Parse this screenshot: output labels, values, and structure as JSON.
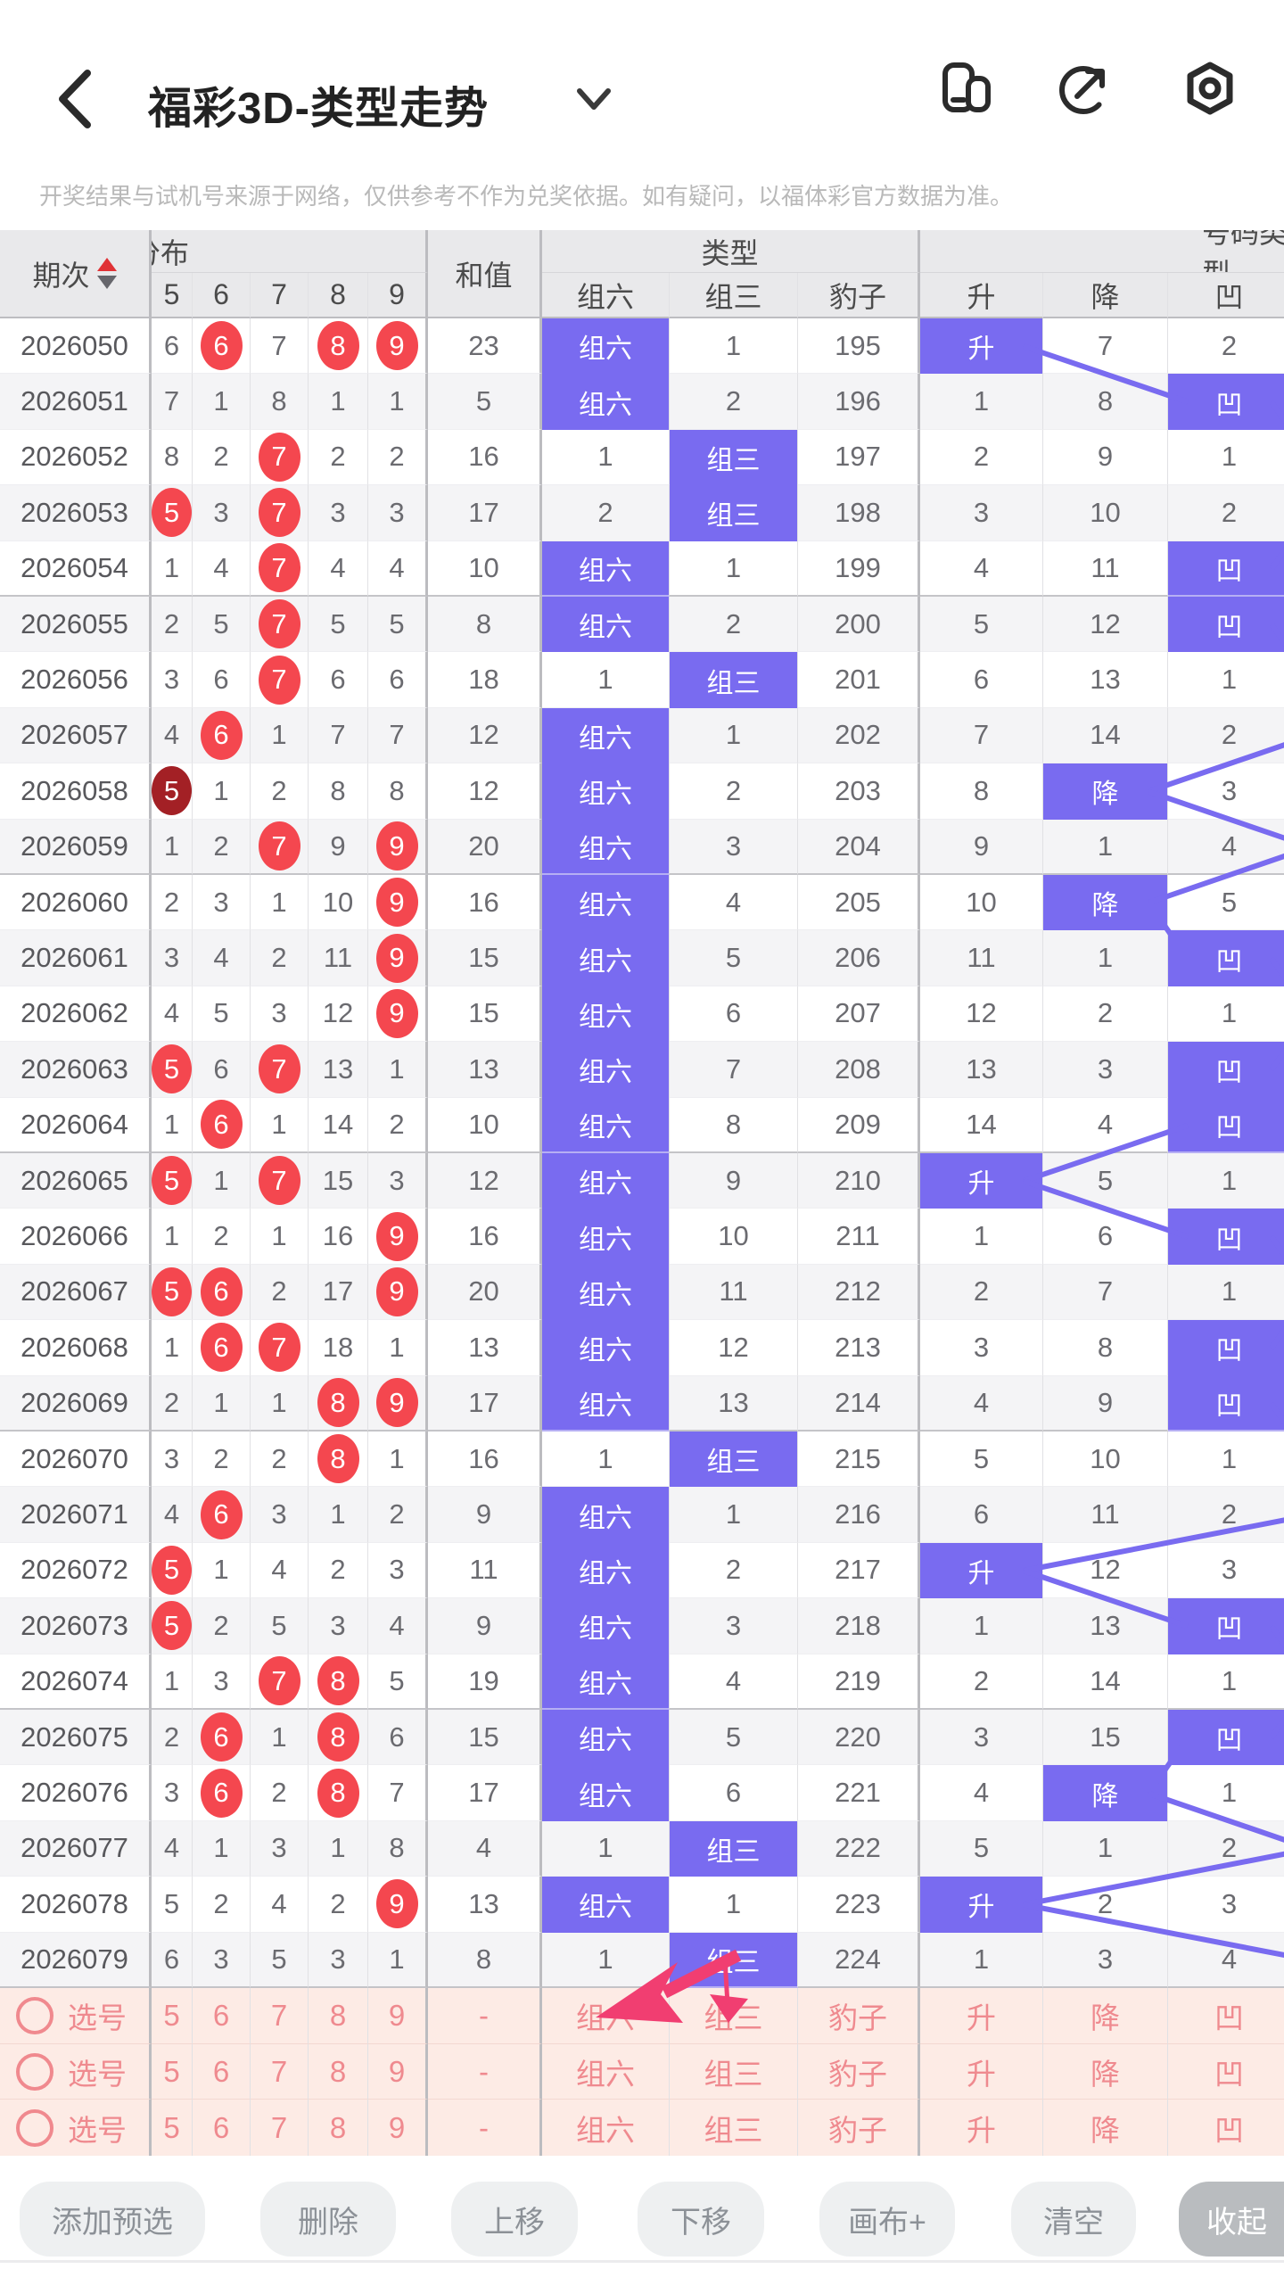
{
  "app_bar": {
    "title": "福彩3D-类型走势"
  },
  "disclaimer": "开奖结果与试机号来源于网络，仅供参考不作为兑奖依据。如有疑问，以福体彩官方数据为准。",
  "table": {
    "group_headers": {
      "period": "期次",
      "distribution": "分布",
      "sum": "和值",
      "type": "类型",
      "number_type": "号码类型"
    },
    "digit_columns": [
      "5",
      "6",
      "7",
      "8",
      "9"
    ],
    "type_columns": [
      "组六",
      "组三",
      "豹子"
    ],
    "number_type_columns": [
      "升",
      "降",
      "凹"
    ],
    "rows": [
      {
        "p": "2026050",
        "d": [
          "6",
          "6",
          "7",
          "8",
          "9"
        ],
        "m": [
          0,
          1,
          0,
          1,
          1
        ],
        "s": "23",
        "t": [
          "组六",
          "1",
          "195"
        ],
        "th": 0,
        "n": [
          "升",
          "7",
          "2"
        ],
        "nh": 0
      },
      {
        "p": "2026051",
        "d": [
          "7",
          "1",
          "8",
          "1",
          "1"
        ],
        "m": [
          0,
          0,
          0,
          0,
          0
        ],
        "s": "5",
        "t": [
          "组六",
          "2",
          "196"
        ],
        "th": 0,
        "n": [
          "1",
          "8",
          "凹"
        ],
        "nh": 2
      },
      {
        "p": "2026052",
        "d": [
          "8",
          "2",
          "7",
          "2",
          "2"
        ],
        "m": [
          0,
          0,
          1,
          0,
          0
        ],
        "s": "16",
        "t": [
          "1",
          "组三",
          "197"
        ],
        "th": 1,
        "n": [
          "2",
          "9",
          "1"
        ],
        "nh": 3
      },
      {
        "p": "2026053",
        "d": [
          "5",
          "3",
          "7",
          "3",
          "3"
        ],
        "m": [
          1,
          0,
          1,
          0,
          0
        ],
        "s": "17",
        "t": [
          "2",
          "组三",
          "198"
        ],
        "th": 1,
        "n": [
          "3",
          "10",
          "2"
        ],
        "nh": 3
      },
      {
        "p": "2026054",
        "d": [
          "1",
          "4",
          "7",
          "4",
          "4"
        ],
        "m": [
          0,
          0,
          1,
          0,
          0
        ],
        "s": "10",
        "t": [
          "组六",
          "1",
          "199"
        ],
        "th": 0,
        "n": [
          "4",
          "11",
          "凹"
        ],
        "nh": 2
      },
      {
        "p": "2026055",
        "d": [
          "2",
          "5",
          "7",
          "5",
          "5"
        ],
        "m": [
          0,
          0,
          1,
          0,
          0
        ],
        "s": "8",
        "t": [
          "组六",
          "2",
          "200"
        ],
        "th": 0,
        "n": [
          "5",
          "12",
          "凹"
        ],
        "nh": 2
      },
      {
        "p": "2026056",
        "d": [
          "3",
          "6",
          "7",
          "6",
          "6"
        ],
        "m": [
          0,
          0,
          1,
          0,
          0
        ],
        "s": "18",
        "t": [
          "1",
          "组三",
          "201"
        ],
        "th": 1,
        "n": [
          "6",
          "13",
          "1"
        ],
        "nh": 3
      },
      {
        "p": "2026057",
        "d": [
          "4",
          "6",
          "1",
          "7",
          "7"
        ],
        "m": [
          0,
          1,
          0,
          0,
          0
        ],
        "s": "12",
        "t": [
          "组六",
          "1",
          "202"
        ],
        "th": 0,
        "n": [
          "7",
          "14",
          "2"
        ],
        "nh": 3
      },
      {
        "p": "2026058",
        "d": [
          "5",
          "1",
          "2",
          "8",
          "8"
        ],
        "m": [
          2,
          0,
          0,
          0,
          0
        ],
        "s": "12",
        "t": [
          "组六",
          "2",
          "203"
        ],
        "th": 0,
        "n": [
          "8",
          "降",
          "3"
        ],
        "nh": 1
      },
      {
        "p": "2026059",
        "d": [
          "1",
          "2",
          "7",
          "9",
          "9"
        ],
        "m": [
          0,
          0,
          1,
          0,
          1
        ],
        "s": "20",
        "t": [
          "组六",
          "3",
          "204"
        ],
        "th": 0,
        "n": [
          "9",
          "1",
          "4"
        ],
        "nh": 3
      },
      {
        "p": "2026060",
        "d": [
          "2",
          "3",
          "1",
          "10",
          "9"
        ],
        "m": [
          0,
          0,
          0,
          0,
          1
        ],
        "s": "16",
        "t": [
          "组六",
          "4",
          "205"
        ],
        "th": 0,
        "n": [
          "10",
          "降",
          "5"
        ],
        "nh": 1
      },
      {
        "p": "2026061",
        "d": [
          "3",
          "4",
          "2",
          "11",
          "9"
        ],
        "m": [
          0,
          0,
          0,
          0,
          1
        ],
        "s": "15",
        "t": [
          "组六",
          "5",
          "206"
        ],
        "th": 0,
        "n": [
          "11",
          "1",
          "凹"
        ],
        "nh": 2
      },
      {
        "p": "2026062",
        "d": [
          "4",
          "5",
          "3",
          "12",
          "9"
        ],
        "m": [
          0,
          0,
          0,
          0,
          1
        ],
        "s": "15",
        "t": [
          "组六",
          "6",
          "207"
        ],
        "th": 0,
        "n": [
          "12",
          "2",
          "1"
        ],
        "nh": 3
      },
      {
        "p": "2026063",
        "d": [
          "5",
          "6",
          "7",
          "13",
          "1"
        ],
        "m": [
          1,
          0,
          1,
          0,
          0
        ],
        "s": "13",
        "t": [
          "组六",
          "7",
          "208"
        ],
        "th": 0,
        "n": [
          "13",
          "3",
          "凹"
        ],
        "nh": 2
      },
      {
        "p": "2026064",
        "d": [
          "1",
          "6",
          "1",
          "14",
          "2"
        ],
        "m": [
          0,
          1,
          0,
          0,
          0
        ],
        "s": "10",
        "t": [
          "组六",
          "8",
          "209"
        ],
        "th": 0,
        "n": [
          "14",
          "4",
          "凹"
        ],
        "nh": 2
      },
      {
        "p": "2026065",
        "d": [
          "5",
          "1",
          "7",
          "15",
          "3"
        ],
        "m": [
          1,
          0,
          1,
          0,
          0
        ],
        "s": "12",
        "t": [
          "组六",
          "9",
          "210"
        ],
        "th": 0,
        "n": [
          "升",
          "5",
          "1"
        ],
        "nh": 0
      },
      {
        "p": "2026066",
        "d": [
          "1",
          "2",
          "1",
          "16",
          "9"
        ],
        "m": [
          0,
          0,
          0,
          0,
          1
        ],
        "s": "16",
        "t": [
          "组六",
          "10",
          "211"
        ],
        "th": 0,
        "n": [
          "1",
          "6",
          "凹"
        ],
        "nh": 2
      },
      {
        "p": "2026067",
        "d": [
          "5",
          "6",
          "2",
          "17",
          "9"
        ],
        "m": [
          1,
          1,
          0,
          0,
          1
        ],
        "s": "20",
        "t": [
          "组六",
          "11",
          "212"
        ],
        "th": 0,
        "n": [
          "2",
          "7",
          "1"
        ],
        "nh": 3
      },
      {
        "p": "2026068",
        "d": [
          "1",
          "6",
          "7",
          "18",
          "1"
        ],
        "m": [
          0,
          1,
          1,
          0,
          0
        ],
        "s": "13",
        "t": [
          "组六",
          "12",
          "213"
        ],
        "th": 0,
        "n": [
          "3",
          "8",
          "凹"
        ],
        "nh": 2
      },
      {
        "p": "2026069",
        "d": [
          "2",
          "1",
          "1",
          "8",
          "9"
        ],
        "m": [
          0,
          0,
          0,
          1,
          1
        ],
        "s": "17",
        "t": [
          "组六",
          "13",
          "214"
        ],
        "th": 0,
        "n": [
          "4",
          "9",
          "凹"
        ],
        "nh": 2
      },
      {
        "p": "2026070",
        "d": [
          "3",
          "2",
          "2",
          "8",
          "1"
        ],
        "m": [
          0,
          0,
          0,
          1,
          0
        ],
        "s": "16",
        "t": [
          "1",
          "组三",
          "215"
        ],
        "th": 1,
        "n": [
          "5",
          "10",
          "1"
        ],
        "nh": 3
      },
      {
        "p": "2026071",
        "d": [
          "4",
          "6",
          "3",
          "1",
          "2"
        ],
        "m": [
          0,
          1,
          0,
          0,
          0
        ],
        "s": "9",
        "t": [
          "组六",
          "1",
          "216"
        ],
        "th": 0,
        "n": [
          "6",
          "11",
          "2"
        ],
        "nh": 3
      },
      {
        "p": "2026072",
        "d": [
          "5",
          "1",
          "4",
          "2",
          "3"
        ],
        "m": [
          1,
          0,
          0,
          0,
          0
        ],
        "s": "11",
        "t": [
          "组六",
          "2",
          "217"
        ],
        "th": 0,
        "n": [
          "升",
          "12",
          "3"
        ],
        "nh": 0
      },
      {
        "p": "2026073",
        "d": [
          "5",
          "2",
          "5",
          "3",
          "4"
        ],
        "m": [
          1,
          0,
          0,
          0,
          0
        ],
        "s": "9",
        "t": [
          "组六",
          "3",
          "218"
        ],
        "th": 0,
        "n": [
          "1",
          "13",
          "凹"
        ],
        "nh": 2
      },
      {
        "p": "2026074",
        "d": [
          "1",
          "3",
          "7",
          "8",
          "5"
        ],
        "m": [
          0,
          0,
          1,
          1,
          0
        ],
        "s": "19",
        "t": [
          "组六",
          "4",
          "219"
        ],
        "th": 0,
        "n": [
          "2",
          "14",
          "1"
        ],
        "nh": 3
      },
      {
        "p": "2026075",
        "d": [
          "2",
          "6",
          "1",
          "8",
          "6"
        ],
        "m": [
          0,
          1,
          0,
          1,
          0
        ],
        "s": "15",
        "t": [
          "组六",
          "5",
          "220"
        ],
        "th": 0,
        "n": [
          "3",
          "15",
          "凹"
        ],
        "nh": 2
      },
      {
        "p": "2026076",
        "d": [
          "3",
          "6",
          "2",
          "8",
          "7"
        ],
        "m": [
          0,
          1,
          0,
          1,
          0
        ],
        "s": "17",
        "t": [
          "组六",
          "6",
          "221"
        ],
        "th": 0,
        "n": [
          "4",
          "降",
          "1"
        ],
        "nh": 1
      },
      {
        "p": "2026077",
        "d": [
          "4",
          "1",
          "3",
          "1",
          "8"
        ],
        "m": [
          0,
          0,
          0,
          0,
          0
        ],
        "s": "4",
        "t": [
          "1",
          "组三",
          "222"
        ],
        "th": 1,
        "n": [
          "5",
          "1",
          "2"
        ],
        "nh": 3
      },
      {
        "p": "2026078",
        "d": [
          "5",
          "2",
          "4",
          "2",
          "9"
        ],
        "m": [
          0,
          0,
          0,
          0,
          1
        ],
        "s": "13",
        "t": [
          "组六",
          "1",
          "223"
        ],
        "th": 0,
        "n": [
          "升",
          "2",
          "3"
        ],
        "nh": 0
      },
      {
        "p": "2026079",
        "d": [
          "6",
          "3",
          "5",
          "3",
          "1"
        ],
        "m": [
          0,
          0,
          0,
          0,
          0
        ],
        "s": "8",
        "t": [
          "1",
          "组三",
          "224"
        ],
        "th": 1,
        "n": [
          "1",
          "3",
          "4"
        ],
        "nh": 3
      }
    ]
  },
  "selection": {
    "label": "选号",
    "digits": [
      "5",
      "6",
      "7",
      "8",
      "9"
    ],
    "sum": "-",
    "types": [
      "组六",
      "组三",
      "豹子"
    ],
    "number_types": [
      "升",
      "降",
      "凹"
    ],
    "row_count": 3
  },
  "toolbar": {
    "buttons": [
      "添加预选",
      "删除",
      "上移",
      "下移",
      "画布+",
      "清空"
    ],
    "collapse_label": "收起"
  },
  "colors": {
    "highlight_purple": "#796bf0",
    "hit_red": "#f4474f",
    "hit_dark_red": "#a32025",
    "selection_pink_bg": "#fdebe5",
    "selection_pink_text": "#ef8a8f",
    "annotation_arrow": "#f13e71",
    "sort_arrow_red": "#e03236"
  }
}
